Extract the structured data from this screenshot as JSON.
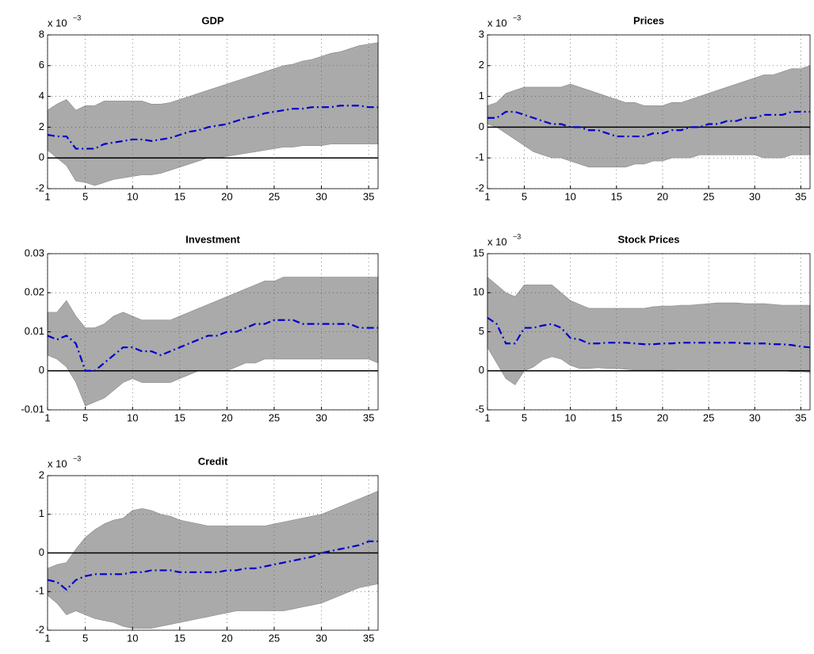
{
  "chart_data": [
    {
      "type": "band-line",
      "title": "GDP",
      "scale_label": "x 10",
      "scale_exponent": "−3",
      "x": [
        1,
        2,
        3,
        4,
        5,
        6,
        7,
        8,
        9,
        10,
        11,
        12,
        13,
        14,
        15,
        16,
        17,
        18,
        19,
        20,
        21,
        22,
        23,
        24,
        25,
        26,
        27,
        28,
        29,
        30,
        31,
        32,
        33,
        34,
        35,
        36
      ],
      "xlim": [
        1,
        36
      ],
      "xticks": [
        1,
        5,
        10,
        15,
        20,
        25,
        30,
        35
      ],
      "ylim": [
        -2,
        8
      ],
      "yticks": [
        -2,
        0,
        2,
        4,
        6,
        8
      ],
      "grid": true,
      "zero_line": true,
      "line": {
        "color": "#0000cc",
        "values": [
          1.5,
          1.4,
          1.4,
          0.6,
          0.6,
          0.6,
          0.9,
          1.0,
          1.1,
          1.2,
          1.2,
          1.1,
          1.2,
          1.3,
          1.5,
          1.7,
          1.8,
          2.0,
          2.1,
          2.2,
          2.4,
          2.6,
          2.7,
          2.9,
          3.0,
          3.1,
          3.2,
          3.2,
          3.3,
          3.3,
          3.3,
          3.4,
          3.4,
          3.4,
          3.3,
          3.3
        ]
      },
      "band": {
        "color": "#aaaaaa",
        "upper": [
          3.1,
          3.5,
          3.8,
          3.1,
          3.4,
          3.4,
          3.7,
          3.7,
          3.7,
          3.7,
          3.7,
          3.5,
          3.5,
          3.6,
          3.8,
          4.0,
          4.2,
          4.4,
          4.6,
          4.8,
          5.0,
          5.2,
          5.4,
          5.6,
          5.8,
          6.0,
          6.1,
          6.3,
          6.4,
          6.6,
          6.8,
          6.9,
          7.1,
          7.3,
          7.4,
          7.5
        ],
        "lower": [
          0.5,
          0,
          -0.5,
          -1.5,
          -1.6,
          -1.8,
          -1.6,
          -1.4,
          -1.3,
          -1.2,
          -1.1,
          -1.1,
          -1.0,
          -0.8,
          -0.6,
          -0.4,
          -0.2,
          0,
          0,
          0.1,
          0.2,
          0.3,
          0.4,
          0.5,
          0.6,
          0.7,
          0.7,
          0.8,
          0.8,
          0.8,
          0.9,
          0.9,
          0.9,
          0.9,
          0.9,
          0.9
        ]
      }
    },
    {
      "type": "band-line",
      "title": "Prices",
      "scale_label": "x 10",
      "scale_exponent": "−3",
      "x": [
        1,
        2,
        3,
        4,
        5,
        6,
        7,
        8,
        9,
        10,
        11,
        12,
        13,
        14,
        15,
        16,
        17,
        18,
        19,
        20,
        21,
        22,
        23,
        24,
        25,
        26,
        27,
        28,
        29,
        30,
        31,
        32,
        33,
        34,
        35,
        36
      ],
      "xlim": [
        1,
        36
      ],
      "xticks": [
        1,
        5,
        10,
        15,
        20,
        25,
        30,
        35
      ],
      "ylim": [
        -2,
        3
      ],
      "yticks": [
        -2,
        -1,
        0,
        1,
        2,
        3
      ],
      "grid": true,
      "zero_line": true,
      "line": {
        "color": "#0000cc",
        "values": [
          0.3,
          0.3,
          0.5,
          0.5,
          0.4,
          0.3,
          0.2,
          0.1,
          0.1,
          0,
          0,
          -0.1,
          -0.1,
          -0.2,
          -0.3,
          -0.3,
          -0.3,
          -0.3,
          -0.2,
          -0.2,
          -0.1,
          -0.1,
          0,
          0,
          0.1,
          0.1,
          0.2,
          0.2,
          0.3,
          0.3,
          0.4,
          0.4,
          0.4,
          0.5,
          0.5,
          0.5
        ]
      },
      "band": {
        "color": "#aaaaaa",
        "upper": [
          0.7,
          0.8,
          1.1,
          1.2,
          1.3,
          1.3,
          1.3,
          1.3,
          1.3,
          1.4,
          1.3,
          1.2,
          1.1,
          1.0,
          0.9,
          0.8,
          0.8,
          0.7,
          0.7,
          0.7,
          0.8,
          0.8,
          0.9,
          1.0,
          1.1,
          1.2,
          1.3,
          1.4,
          1.5,
          1.6,
          1.7,
          1.7,
          1.8,
          1.9,
          1.9,
          2.0
        ],
        "lower": [
          0.1,
          0,
          -0.2,
          -0.4,
          -0.6,
          -0.8,
          -0.9,
          -1.0,
          -1.0,
          -1.1,
          -1.2,
          -1.3,
          -1.3,
          -1.3,
          -1.3,
          -1.3,
          -1.2,
          -1.2,
          -1.1,
          -1.1,
          -1.0,
          -1.0,
          -1.0,
          -0.9,
          -0.9,
          -0.9,
          -0.9,
          -0.9,
          -0.9,
          -0.9,
          -1.0,
          -1.0,
          -1.0,
          -0.9,
          -0.9,
          -0.9
        ]
      }
    },
    {
      "type": "band-line",
      "title": "Investment",
      "x": [
        1,
        2,
        3,
        4,
        5,
        6,
        7,
        8,
        9,
        10,
        11,
        12,
        13,
        14,
        15,
        16,
        17,
        18,
        19,
        20,
        21,
        22,
        23,
        24,
        25,
        26,
        27,
        28,
        29,
        30,
        31,
        32,
        33,
        34,
        35,
        36
      ],
      "xlim": [
        1,
        36
      ],
      "xticks": [
        1,
        5,
        10,
        15,
        20,
        25,
        30,
        35
      ],
      "ylim": [
        -0.01,
        0.03
      ],
      "yticks": [
        -0.01,
        0,
        0.01,
        0.02,
        0.03
      ],
      "grid": true,
      "zero_line": true,
      "line": {
        "color": "#0000cc",
        "values": [
          0.009,
          0.008,
          0.009,
          0.007,
          0,
          0,
          0.002,
          0.004,
          0.006,
          0.006,
          0.005,
          0.005,
          0.004,
          0.005,
          0.006,
          0.007,
          0.008,
          0.009,
          0.009,
          0.01,
          0.01,
          0.011,
          0.012,
          0.012,
          0.013,
          0.013,
          0.013,
          0.012,
          0.012,
          0.012,
          0.012,
          0.012,
          0.012,
          0.011,
          0.011,
          0.011
        ]
      },
      "band": {
        "color": "#aaaaaa",
        "upper": [
          0.015,
          0.015,
          0.018,
          0.014,
          0.011,
          0.011,
          0.012,
          0.014,
          0.015,
          0.014,
          0.013,
          0.013,
          0.013,
          0.013,
          0.014,
          0.015,
          0.016,
          0.017,
          0.018,
          0.019,
          0.02,
          0.021,
          0.022,
          0.023,
          0.023,
          0.024,
          0.024,
          0.024,
          0.024,
          0.024,
          0.024,
          0.024,
          0.024,
          0.024,
          0.024,
          0.024
        ],
        "lower": [
          0.004,
          0.003,
          0.001,
          -0.003,
          -0.009,
          -0.008,
          -0.007,
          -0.005,
          -0.003,
          -0.002,
          -0.003,
          -0.003,
          -0.003,
          -0.003,
          -0.002,
          -0.001,
          0,
          0,
          0,
          0,
          0.001,
          0.002,
          0.002,
          0.003,
          0.003,
          0.003,
          0.003,
          0.003,
          0.003,
          0.003,
          0.003,
          0.003,
          0.003,
          0.003,
          0.003,
          0.002
        ]
      }
    },
    {
      "type": "band-line",
      "title": "Stock Prices",
      "scale_label": "x 10",
      "scale_exponent": "−3",
      "x": [
        1,
        2,
        3,
        4,
        5,
        6,
        7,
        8,
        9,
        10,
        11,
        12,
        13,
        14,
        15,
        16,
        17,
        18,
        19,
        20,
        21,
        22,
        23,
        24,
        25,
        26,
        27,
        28,
        29,
        30,
        31,
        32,
        33,
        34,
        35,
        36
      ],
      "xlim": [
        1,
        36
      ],
      "xticks": [
        1,
        5,
        10,
        15,
        20,
        25,
        30,
        35
      ],
      "ylim": [
        -5,
        15
      ],
      "yticks": [
        -5,
        0,
        5,
        10,
        15
      ],
      "grid": true,
      "zero_line": true,
      "line": {
        "color": "#0000cc",
        "values": [
          6.8,
          6,
          3.5,
          3.5,
          5.5,
          5.5,
          5.8,
          6,
          5.5,
          4.2,
          4,
          3.5,
          3.5,
          3.6,
          3.6,
          3.6,
          3.5,
          3.4,
          3.4,
          3.5,
          3.5,
          3.6,
          3.6,
          3.6,
          3.6,
          3.6,
          3.6,
          3.6,
          3.5,
          3.5,
          3.5,
          3.4,
          3.4,
          3.3,
          3.1,
          3.0
        ]
      },
      "band": {
        "color": "#aaaaaa",
        "upper": [
          12,
          11,
          10,
          9.5,
          11,
          11,
          11,
          11,
          10,
          9,
          8.5,
          8,
          8,
          8,
          8,
          8,
          8,
          8,
          8.2,
          8.3,
          8.3,
          8.4,
          8.4,
          8.5,
          8.6,
          8.7,
          8.7,
          8.7,
          8.6,
          8.6,
          8.6,
          8.5,
          8.4,
          8.4,
          8.4,
          8.4
        ],
        "lower": [
          3,
          1,
          -1,
          -1.8,
          0,
          0.5,
          1.4,
          1.8,
          1.5,
          0.7,
          0.3,
          0.3,
          0.4,
          0.3,
          0.3,
          0.2,
          0.1,
          0.1,
          0.1,
          0.1,
          0.1,
          0,
          0,
          0,
          0,
          0,
          0,
          0,
          0,
          0,
          0,
          0,
          0,
          -0.1,
          -0.1,
          -0.2
        ]
      }
    },
    {
      "type": "band-line",
      "title": "Credit",
      "scale_label": "x 10",
      "scale_exponent": "−3",
      "x": [
        1,
        2,
        3,
        4,
        5,
        6,
        7,
        8,
        9,
        10,
        11,
        12,
        13,
        14,
        15,
        16,
        17,
        18,
        19,
        20,
        21,
        22,
        23,
        24,
        25,
        26,
        27,
        28,
        29,
        30,
        31,
        32,
        33,
        34,
        35,
        36
      ],
      "xlim": [
        1,
        36
      ],
      "xticks": [
        1,
        5,
        10,
        15,
        20,
        25,
        30,
        35
      ],
      "ylim": [
        -2,
        2
      ],
      "yticks": [
        -2,
        -1,
        0,
        1,
        2
      ],
      "grid": true,
      "zero_line": true,
      "line": {
        "color": "#0000cc",
        "values": [
          -0.7,
          -0.75,
          -0.95,
          -0.7,
          -0.6,
          -0.55,
          -0.55,
          -0.55,
          -0.55,
          -0.5,
          -0.5,
          -0.45,
          -0.45,
          -0.45,
          -0.5,
          -0.5,
          -0.5,
          -0.5,
          -0.5,
          -0.45,
          -0.45,
          -0.4,
          -0.4,
          -0.35,
          -0.3,
          -0.25,
          -0.2,
          -0.15,
          -0.1,
          0,
          0.05,
          0.1,
          0.15,
          0.2,
          0.3,
          0.3
        ]
      },
      "band": {
        "color": "#aaaaaa",
        "upper": [
          -0.4,
          -0.3,
          -0.25,
          0.1,
          0.4,
          0.6,
          0.75,
          0.85,
          0.9,
          1.1,
          1.15,
          1.1,
          1.0,
          0.95,
          0.85,
          0.8,
          0.75,
          0.7,
          0.7,
          0.7,
          0.7,
          0.7,
          0.7,
          0.7,
          0.75,
          0.8,
          0.85,
          0.9,
          0.95,
          1.0,
          1.1,
          1.2,
          1.3,
          1.4,
          1.5,
          1.6
        ],
        "lower": [
          -1.1,
          -1.3,
          -1.6,
          -1.5,
          -1.6,
          -1.7,
          -1.75,
          -1.8,
          -1.9,
          -1.95,
          -1.95,
          -1.95,
          -1.9,
          -1.85,
          -1.8,
          -1.75,
          -1.7,
          -1.65,
          -1.6,
          -1.55,
          -1.5,
          -1.5,
          -1.5,
          -1.5,
          -1.5,
          -1.5,
          -1.45,
          -1.4,
          -1.35,
          -1.3,
          -1.2,
          -1.1,
          -1.0,
          -0.9,
          -0.85,
          -0.8
        ]
      }
    }
  ]
}
